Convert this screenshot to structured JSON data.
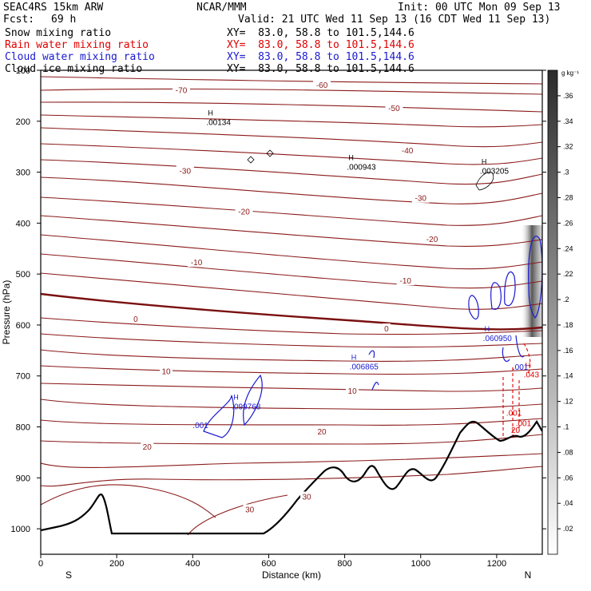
{
  "header": {
    "model": "SEAC4RS 15km ARW",
    "org": "NCAR/MMM",
    "init": "Init: 00 UTC Mon 09 Sep 13",
    "fcst_label": "Fcst:",
    "fcst_value": "69 h",
    "valid": "Valid: 21 UTC Wed 11 Sep 13 (16 CDT Wed 11 Sep 13)"
  },
  "fields": [
    {
      "name": "Snow mixing ratio",
      "xy": "XY=  83.0, 58.8 to 101.5,144.6",
      "color": "#000000"
    },
    {
      "name": "Rain water mixing ratio",
      "xy": "XY=  83.0, 58.8 to 101.5,144.6",
      "color": "#e00000"
    },
    {
      "name": "Cloud water mixing ratio",
      "xy": "XY=  83.0, 58.8 to 101.5,144.6",
      "color": "#1a1ad0"
    },
    {
      "name": "Cloud ice mixing ratio",
      "xy": "XY=  83.0, 58.8 to 101.5,144.6",
      "color": "#000000"
    }
  ],
  "chart_data": {
    "type": "line",
    "xlabel": "Distance (km)",
    "ylabel": "Pressure (hPa)",
    "xlim": [
      0,
      1320
    ],
    "ylim": [
      1050,
      100
    ],
    "x_ticks": [
      0,
      200,
      400,
      600,
      800,
      1000,
      1200
    ],
    "y_ticks": [
      100,
      200,
      300,
      400,
      500,
      600,
      700,
      800,
      900,
      1000
    ],
    "x_end_labels": {
      "left": "S",
      "right": "N"
    },
    "colorbar": {
      "unit": "g kg⁻¹",
      "ticks": [
        ".02",
        ".04",
        ".06",
        ".08",
        ".1",
        ".12",
        ".14",
        ".16",
        ".18",
        ".2",
        ".22",
        ".24",
        ".26",
        ".28",
        ".3",
        ".32",
        ".34",
        ".36"
      ]
    },
    "isotherm_labels": [
      {
        "x": 370,
        "p": 140,
        "text": "-70"
      },
      {
        "x": 740,
        "p": 130,
        "text": "-60"
      },
      {
        "x": 930,
        "p": 175,
        "text": "-50"
      },
      {
        "x": 965,
        "p": 258,
        "text": "-40"
      },
      {
        "x": 380,
        "p": 298,
        "text": "-30"
      },
      {
        "x": 1000,
        "p": 352,
        "text": "-30"
      },
      {
        "x": 535,
        "p": 378,
        "text": "-20"
      },
      {
        "x": 1030,
        "p": 432,
        "text": "-20"
      },
      {
        "x": 410,
        "p": 478,
        "text": "-10"
      },
      {
        "x": 960,
        "p": 514,
        "text": "-10"
      },
      {
        "x": 250,
        "p": 589,
        "text": "0"
      },
      {
        "x": 910,
        "p": 608,
        "text": "0"
      },
      {
        "x": 330,
        "p": 692,
        "text": "10"
      },
      {
        "x": 820,
        "p": 730,
        "text": "10"
      },
      {
        "x": 280,
        "p": 840,
        "text": "20"
      },
      {
        "x": 740,
        "p": 810,
        "text": "20"
      },
      {
        "x": 550,
        "p": 963,
        "text": "30"
      },
      {
        "x": 700,
        "p": 938,
        "text": "30"
      }
    ],
    "maxima": [
      {
        "x": 440,
        "p": 204,
        "label": ".00134",
        "color": "#000000"
      },
      {
        "x": 810,
        "p": 292,
        "label": ".000943",
        "color": "#000000"
      },
      {
        "x": 1160,
        "p": 300,
        "label": ".003205",
        "color": "#000000"
      },
      {
        "x": 507,
        "p": 762,
        "label": ".099768",
        "color": "#1a1ad0"
      },
      {
        "x": 817,
        "p": 684,
        "label": ".006865",
        "color": "#1a1ad0"
      },
      {
        "x": 1168,
        "p": 628,
        "label": ".060950",
        "color": "#1a1ad0"
      },
      {
        "x": 1275,
        "p": 700,
        "label": ".043",
        "color": "#e00000"
      }
    ],
    "contour_labels": [
      {
        "x": 400,
        "p": 802,
        "text": ".001",
        "color": "#1a1ad0"
      },
      {
        "x": 1242,
        "p": 688,
        "text": ".001",
        "color": "#1a1ad0"
      },
      {
        "x": 1225,
        "p": 778,
        "text": ".001",
        "color": "#e00000"
      },
      {
        "x": 1250,
        "p": 798,
        "text": ".001",
        "color": "#e00000"
      },
      {
        "x": 1238,
        "p": 812,
        "text": "20",
        "color": "#e00000"
      }
    ]
  }
}
